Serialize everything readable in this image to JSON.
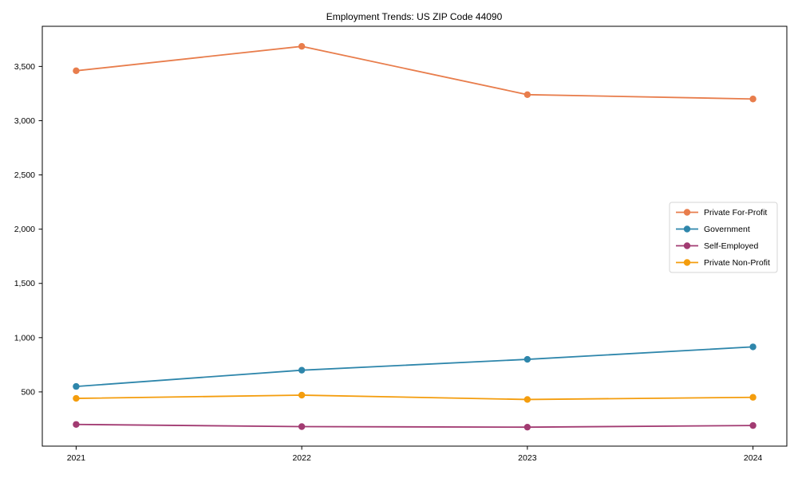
{
  "page": {
    "background": "#ffffff"
  },
  "chart_data": {
    "type": "line",
    "title": "Employment Trends: US ZIP Code 44090",
    "categories": [
      "2021",
      "2022",
      "2023",
      "2024"
    ],
    "series": [
      {
        "name": "Private For-Profit",
        "color": "#E87D4C",
        "values": [
          3460,
          3685,
          3240,
          3200
        ]
      },
      {
        "name": "Government",
        "color": "#2E86AB",
        "values": [
          550,
          700,
          800,
          915
        ]
      },
      {
        "name": "Self-Employed",
        "color": "#A23B72",
        "values": [
          200,
          180,
          175,
          190
        ]
      },
      {
        "name": "Private Non-Profit",
        "color": "#F49D0D",
        "values": [
          440,
          470,
          430,
          450
        ]
      }
    ],
    "xlabel": "",
    "ylabel": "",
    "yticks": [
      500,
      1000,
      1500,
      2000,
      2500,
      3000,
      3500
    ],
    "ytick_labels": [
      "500",
      "1,000",
      "1,500",
      "2,000",
      "2,500",
      "3,000",
      "3,500"
    ],
    "ylim": [
      0,
      3870
    ],
    "grid": false,
    "legend_position": "center-right",
    "marker": "circle",
    "text_color": "#000000",
    "spine_color": "#000000",
    "legend_border_color": "#d5d5d5",
    "legend_background": "#ffffff"
  }
}
